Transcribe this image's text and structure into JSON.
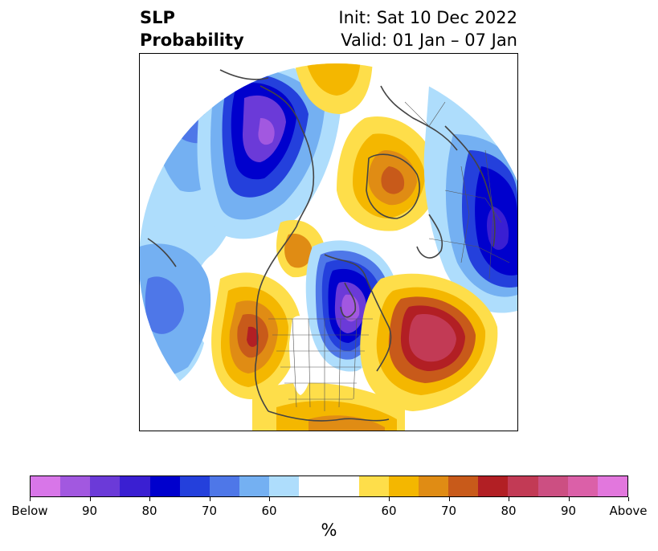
{
  "header": {
    "title_line1": "SLP",
    "title_line2": "Probability",
    "init": "Init: Sat 10 Dec 2022",
    "valid": "Valid: 01 Jan – 07 Jan"
  },
  "map": {
    "projection": "north-polar-stereographic",
    "features": [
      "coastlines",
      "country-borders",
      "us-state-borders"
    ],
    "regions_below": [
      "Alaska / Bering",
      "Central Canada / Hudson Bay",
      "Northwest Pacific",
      "Western Europe / Scandinavia"
    ],
    "regions_above": [
      "Arctic Siberia",
      "Greenland",
      "Central Russia",
      "Northeast Pacific",
      "North Atlantic",
      "Western US",
      "Gulf of Mexico"
    ]
  },
  "legend": {
    "colors": [
      "#d876e8",
      "#a258e0",
      "#6b3ad8",
      "#3a1fd2",
      "#0000cd",
      "#2440dc",
      "#4e77e8",
      "#74b0f2",
      "#aeddfc",
      "#ffffff",
      "#fede4a",
      "#f4b700",
      "#e08c14",
      "#c85a1a",
      "#b21f24",
      "#c23a55",
      "#cc4f82",
      "#db60a8",
      "#e277dd"
    ],
    "tick_labels": [
      "Below",
      "90",
      "80",
      "70",
      "60",
      "60",
      "70",
      "80",
      "90",
      "Above"
    ],
    "unit": "%"
  }
}
